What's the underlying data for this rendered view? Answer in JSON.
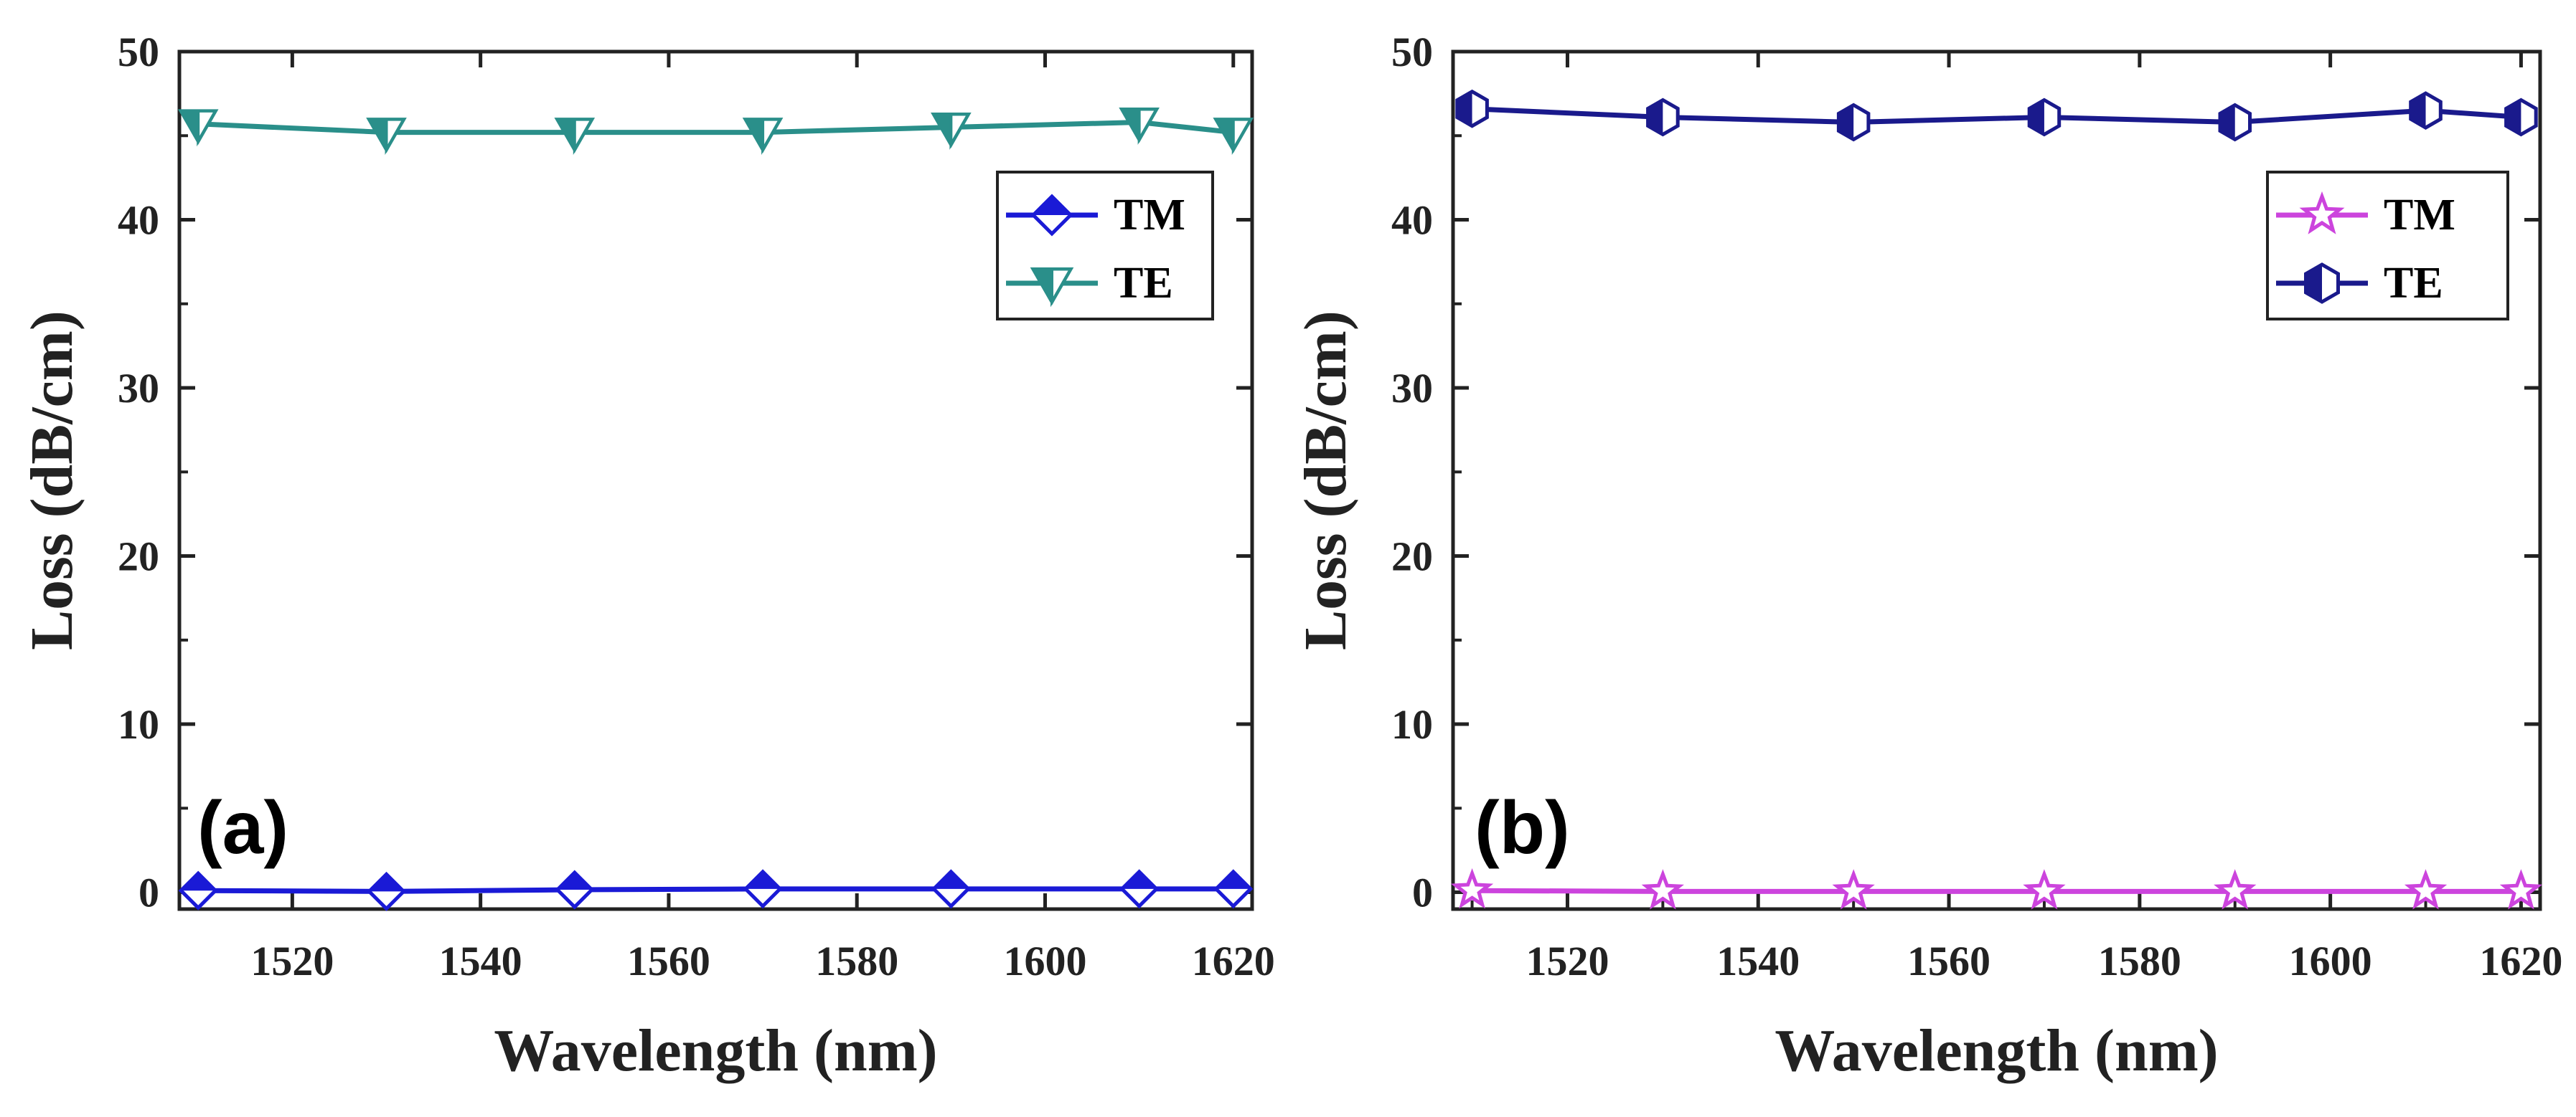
{
  "chart_data": [
    {
      "type": "line",
      "panel_label": "(a)",
      "xlabel": "Wavelength (nm)",
      "ylabel": "Loss (dB/cm)",
      "xlim": [
        1508,
        1622
      ],
      "ylim": [
        -1,
        50
      ],
      "xticks": [
        1520,
        1540,
        1560,
        1580,
        1600,
        1620
      ],
      "yticks": [
        0,
        10,
        20,
        30,
        40,
        50
      ],
      "legend_position": "top-right",
      "x": [
        1510,
        1530,
        1550,
        1570,
        1590,
        1610,
        1620
      ],
      "series": [
        {
          "name": "TM",
          "marker": "diamond",
          "color": "#1a1ad6",
          "values": [
            0.1,
            0.05,
            0.15,
            0.2,
            0.2,
            0.2,
            0.2
          ]
        },
        {
          "name": "TE",
          "marker": "triangle-down",
          "color": "#2a8f8a",
          "values": [
            45.7,
            45.2,
            45.2,
            45.2,
            45.5,
            45.8,
            45.2
          ]
        }
      ]
    },
    {
      "type": "line",
      "panel_label": "(b)",
      "xlabel": "Wavelength (nm)",
      "ylabel": "Loss (dB/cm)",
      "xlim": [
        1508,
        1622
      ],
      "ylim": [
        -1,
        50
      ],
      "xticks": [
        1520,
        1540,
        1560,
        1580,
        1600,
        1620
      ],
      "yticks": [
        0,
        10,
        20,
        30,
        40,
        50
      ],
      "legend_position": "top-right",
      "x": [
        1510,
        1530,
        1550,
        1570,
        1590,
        1610,
        1620
      ],
      "series": [
        {
          "name": "TM",
          "marker": "star",
          "color": "#cc44dd",
          "values": [
            0.1,
            0.05,
            0.05,
            0.05,
            0.05,
            0.05,
            0.05
          ]
        },
        {
          "name": "TE",
          "marker": "half-hexagon",
          "color": "#1a1a8c",
          "values": [
            46.6,
            46.1,
            45.8,
            46.1,
            45.8,
            46.5,
            46.1
          ]
        }
      ]
    }
  ]
}
